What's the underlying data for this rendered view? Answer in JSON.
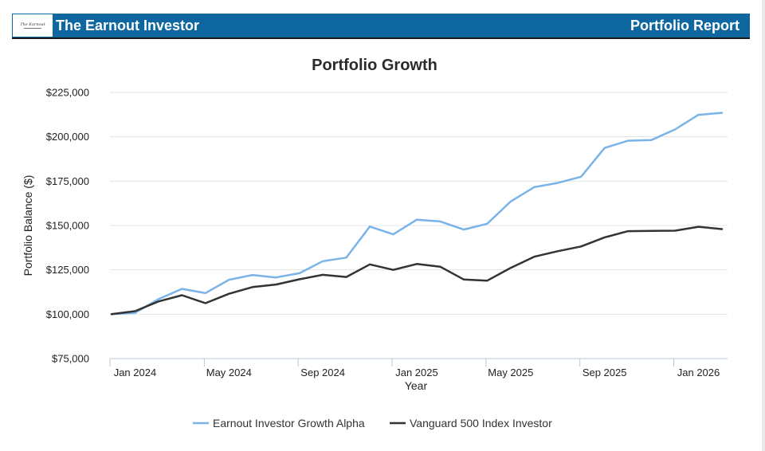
{
  "header": {
    "logo_text": "The Earnout",
    "title": "The Earnout Investor",
    "report_label": "Portfolio Report"
  },
  "chart_data": {
    "type": "line",
    "title": "Portfolio Growth",
    "xlabel": "Year",
    "ylabel": "Portfolio Balance ($)",
    "ylim": [
      75000,
      225000
    ],
    "yticks": [
      75000,
      100000,
      125000,
      150000,
      175000,
      200000,
      225000
    ],
    "ytick_labels": [
      "$75,000",
      "$100,000",
      "$125,000",
      "$150,000",
      "$175,000",
      "$200,000",
      "$225,000"
    ],
    "x": [
      "Dec 2023",
      "Jan 2024",
      "Feb 2024",
      "Mar 2024",
      "Apr 2024",
      "May 2024",
      "Jun 2024",
      "Jul 2024",
      "Aug 2024",
      "Sep 2024",
      "Oct 2024",
      "Nov 2024",
      "Dec 2024",
      "Jan 2025",
      "Feb 2025",
      "Mar 2025",
      "Apr 2025",
      "May 2025",
      "Jun 2025",
      "Jul 2025",
      "Aug 2025",
      "Sep 2025",
      "Oct 2025",
      "Nov 2025",
      "Dec 2025",
      "Jan 2026",
      "Feb 2026"
    ],
    "xticks": [
      {
        "label": "Jan 2024",
        "index": 1
      },
      {
        "label": "May 2024",
        "index": 5
      },
      {
        "label": "Sep 2024",
        "index": 9
      },
      {
        "label": "Jan 2025",
        "index": 13
      },
      {
        "label": "May 2025",
        "index": 17
      },
      {
        "label": "Sep 2025",
        "index": 21
      },
      {
        "label": "Jan 2026",
        "index": 25
      }
    ],
    "series": [
      {
        "name": "Earnout Investor Growth Alpha",
        "color": "#7ab3e8",
        "values": [
          100000,
          100800,
          108500,
          114300,
          111900,
          119400,
          122100,
          120700,
          123100,
          129900,
          131900,
          149400,
          145000,
          153300,
          152300,
          147700,
          151000,
          163500,
          171600,
          174000,
          177500,
          193700,
          197800,
          198200,
          204100,
          212400,
          213500
        ]
      },
      {
        "name": "Vanguard 500 Index Investor",
        "color": "#333333",
        "values": [
          100000,
          101700,
          107200,
          110700,
          106200,
          111500,
          115300,
          116700,
          119700,
          122200,
          121000,
          128100,
          125000,
          128300,
          126800,
          119600,
          118900,
          126100,
          132400,
          135500,
          138200,
          143300,
          146800,
          147000,
          147100,
          149300,
          148000
        ]
      }
    ],
    "legend_position": "bottom"
  }
}
